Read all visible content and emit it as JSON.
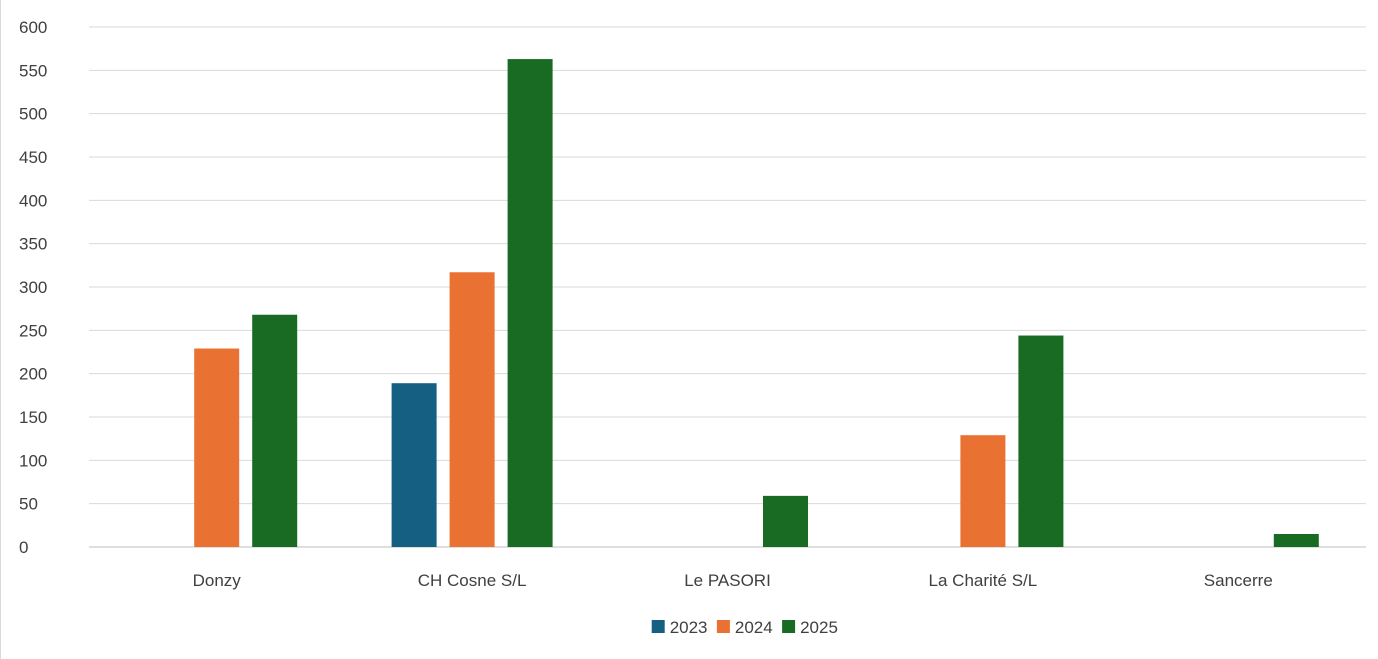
{
  "chart_data": {
    "type": "bar",
    "title": "",
    "xlabel": "",
    "ylabel": "",
    "categories": [
      "Donzy",
      "CH Cosne S/L",
      "Le PASORI",
      "La Charité S/L",
      "Sancerre"
    ],
    "series": [
      {
        "name": "2023",
        "color": "#156082",
        "values": [
          null,
          189,
          null,
          null,
          null
        ]
      },
      {
        "name": "2024",
        "color": "#E97132",
        "values": [
          229,
          317,
          null,
          129,
          null
        ]
      },
      {
        "name": "2025",
        "color": "#196B24",
        "values": [
          268,
          563,
          59,
          244,
          15
        ]
      }
    ],
    "ylim": [
      0,
      600
    ],
    "yticks": [
      0,
      50,
      100,
      150,
      200,
      250,
      300,
      350,
      400,
      450,
      500,
      550,
      600
    ],
    "grid": true,
    "legend_position": "bottom"
  }
}
